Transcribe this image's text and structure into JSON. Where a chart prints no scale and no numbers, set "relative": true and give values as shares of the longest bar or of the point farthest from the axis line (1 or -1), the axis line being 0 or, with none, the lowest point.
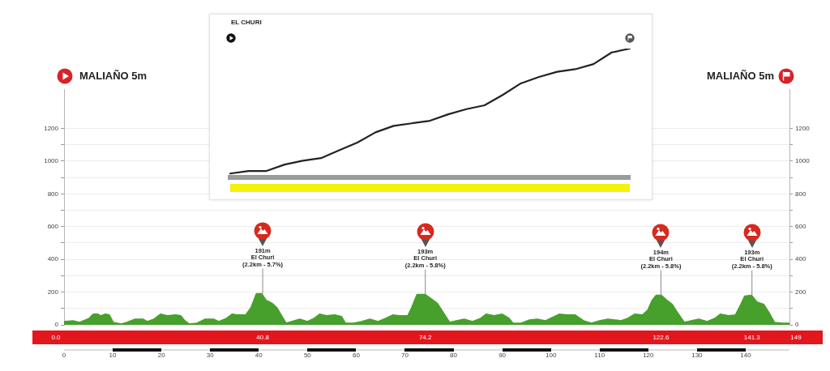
{
  "chart_data": [
    {
      "type": "area",
      "x": [
        0,
        1.8,
        3.2,
        5.2,
        6,
        7,
        7.5,
        8.5,
        9.3,
        10.1,
        11.8,
        12.9,
        14.6,
        16.2,
        17.1,
        18.5,
        19.8,
        21.2,
        22.9,
        24,
        24.8,
        25.7,
        27.3,
        29,
        30.7,
        31.8,
        33.4,
        34.5,
        35.6,
        37.3,
        38.4,
        39.5,
        40.6,
        41.5,
        42.8,
        43.7,
        44.8,
        45.6,
        47.3,
        48.4,
        50,
        51.4,
        52.5,
        53.9,
        55.6,
        57,
        57.8,
        59.5,
        61.1,
        62.8,
        64.5,
        66.1,
        67.5,
        68.9,
        70.6,
        71.4,
        72.5,
        74.2,
        75.6,
        76.7,
        77.8,
        79.2,
        80.6,
        82.2,
        83.9,
        85.6,
        86.7,
        88.3,
        90,
        91.4,
        92.2,
        93.9,
        95.6,
        97.2,
        98.9,
        100.3,
        101.7,
        103.3,
        105,
        106.7,
        108.3,
        110,
        111.7,
        113.1,
        114.4,
        115.8,
        117.2,
        118.8,
        119.9,
        120.8,
        121.6,
        122.7,
        123.8,
        124.9,
        126,
        127.4,
        128.8,
        130.4,
        132.1,
        133.7,
        134.8,
        136.5,
        137.9,
        139,
        139.8,
        141.2,
        142.3,
        143.7,
        144.8,
        145.9,
        147.6,
        149
      ],
      "values": [
        20,
        25,
        15,
        40,
        65,
        65,
        55,
        65,
        60,
        15,
        5,
        15,
        35,
        35,
        20,
        35,
        65,
        55,
        60,
        55,
        25,
        5,
        10,
        35,
        35,
        20,
        40,
        65,
        60,
        60,
        105,
        190,
        190,
        150,
        130,
        105,
        50,
        10,
        25,
        35,
        20,
        40,
        65,
        55,
        60,
        50,
        10,
        10,
        20,
        35,
        20,
        40,
        60,
        55,
        55,
        105,
        185,
        185,
        155,
        130,
        80,
        15,
        25,
        35,
        20,
        40,
        65,
        55,
        65,
        40,
        10,
        10,
        30,
        35,
        25,
        45,
        65,
        60,
        60,
        25,
        10,
        25,
        35,
        30,
        25,
        40,
        65,
        60,
        90,
        150,
        180,
        180,
        150,
        125,
        75,
        15,
        25,
        35,
        20,
        40,
        65,
        55,
        60,
        125,
        175,
        180,
        140,
        125,
        75,
        15,
        10,
        10
      ],
      "color": "#47a02c",
      "marker": "none",
      "xlim": [
        0,
        149
      ],
      "xticks": [
        0,
        10,
        20,
        30,
        40,
        50,
        60,
        70,
        80,
        90,
        100,
        110,
        120,
        130,
        140
      ],
      "ylim": [
        0,
        1440
      ],
      "yticks": [
        0,
        {
          "value": 100,
          "label": null
        },
        200,
        {
          "value": 300,
          "label": null
        },
        400,
        {
          "value": 500,
          "label": null
        },
        600,
        {
          "value": 700,
          "label": null
        },
        800,
        {
          "value": 900,
          "label": null
        },
        1000,
        {
          "value": 1100,
          "label": null
        },
        1200
      ],
      "y2lim": [
        0,
        1440
      ],
      "y2ticks": [
        0,
        {
          "value": 100,
          "label": null
        },
        200,
        {
          "value": 300,
          "label": null
        },
        400,
        {
          "value": 500,
          "label": null
        },
        600,
        {
          "value": 700,
          "label": null
        },
        800,
        {
          "value": 900,
          "label": null
        },
        1000,
        {
          "value": 1100,
          "label": null
        },
        1200
      ],
      "grid": "y",
      "annotations": [
        "MALIAÑO 5m",
        "MALIAÑO 5m",
        {
          "text": "191m\nEl Churi\n(2.2km - 5.7%)",
          "x": 40.8,
          "y": 190
        },
        {
          "text": "193m\nEl Churi\n(2.2km - 5.8%)",
          "x": 74.2,
          "y": 185
        },
        {
          "text": "194m\nEl Churi\n(2.2km - 5.8%)",
          "x": 122.6,
          "y": 180
        },
        {
          "text": "193m\nEl Churi\n(2.2km - 5.8%)",
          "x": 141.3,
          "y": 180
        },
        "0.0",
        "40.8",
        "74.2",
        "122.6",
        "141.3",
        "149"
      ]
    },
    {
      "type": "line",
      "title": "EL CHURI",
      "relative": true,
      "categories": [
        null,
        null,
        null,
        null,
        null,
        null,
        null,
        null,
        null,
        null,
        null,
        null,
        null,
        null,
        null,
        null,
        null,
        null,
        null,
        null,
        null,
        null,
        null
      ],
      "values": [
        0.03,
        0.05,
        0.05,
        0.1,
        0.13,
        0.15,
        0.21,
        0.27,
        0.35,
        0.4,
        0.42,
        0.44,
        0.49,
        0.53,
        0.56,
        0.64,
        0.73,
        0.78,
        0.82,
        0.84,
        0.88,
        0.97,
        1.0
      ],
      "color": "#222222",
      "marker": "none"
    }
  ]
}
